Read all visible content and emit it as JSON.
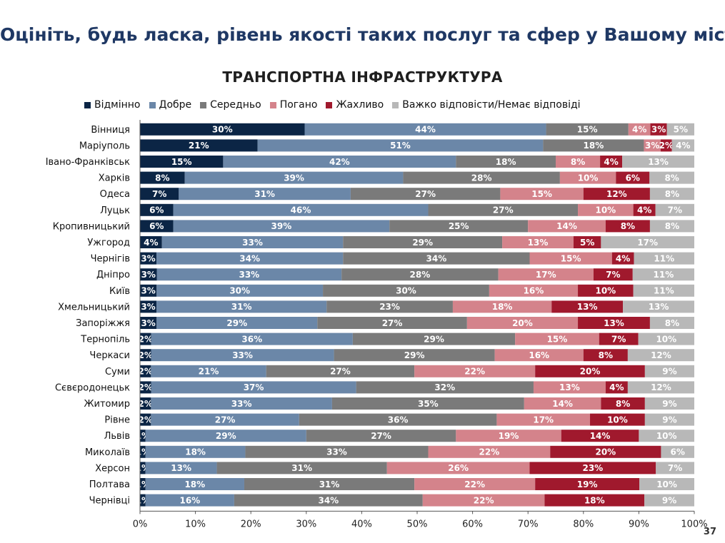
{
  "page": {
    "title": "Оцініть, будь ласка, рівень якості таких послуг та сфер у Вашому місті",
    "page_number": "37"
  },
  "chart_data": {
    "type": "bar",
    "orientation": "horizontal",
    "stacked": "percent",
    "title": "ТРАНСПОРТНА ІНФРАСТРУКТУРА",
    "legend_position": "top",
    "xlim": [
      0,
      100
    ],
    "x_ticks": [
      "0%",
      "10%",
      "20%",
      "30%",
      "40%",
      "50%",
      "60%",
      "70%",
      "80%",
      "90%",
      "100%"
    ],
    "categories": [
      "Вінниця",
      "Маріуполь",
      "Івано-Франківськ",
      "Харків",
      "Одеса",
      "Луцьк",
      "Кропивницький",
      "Ужгород",
      "Чернігів",
      "Дніпро",
      "Київ",
      "Хмельницький",
      "Запоріжжя",
      "Тернопіль",
      "Черкаси",
      "Суми",
      "Сєвєродонецьк",
      "Житомир",
      "Рівне",
      "Львів",
      "Миколаїв",
      "Херсон",
      "Полтава",
      "Чернівці"
    ],
    "series": [
      {
        "name": "Відмінно",
        "color": "#0b2545",
        "label_color": "#ffffff",
        "values": [
          30,
          21,
          15,
          8,
          7,
          6,
          6,
          4,
          3,
          3,
          3,
          3,
          3,
          2,
          2,
          2,
          2,
          2,
          2,
          1,
          1,
          1,
          1,
          1
        ]
      },
      {
        "name": "Добре",
        "color": "#6b87a8",
        "label_color": "#ffffff",
        "values": [
          44,
          51,
          42,
          39,
          31,
          46,
          39,
          33,
          34,
          33,
          30,
          31,
          29,
          36,
          33,
          21,
          37,
          33,
          27,
          29,
          18,
          13,
          18,
          16
        ]
      },
      {
        "name": "Середньо",
        "color": "#7a7a7a",
        "label_color": "#ffffff",
        "values": [
          15,
          18,
          18,
          28,
          27,
          27,
          25,
          29,
          34,
          28,
          30,
          23,
          27,
          29,
          29,
          27,
          32,
          35,
          36,
          27,
          33,
          31,
          31,
          34
        ]
      },
      {
        "name": "Погано",
        "color": "#d4838b",
        "label_color": "#ffffff",
        "values": [
          4,
          3,
          8,
          10,
          15,
          10,
          14,
          13,
          15,
          17,
          16,
          18,
          20,
          15,
          16,
          22,
          13,
          14,
          17,
          19,
          22,
          26,
          22,
          22
        ]
      },
      {
        "name": "Жахливо",
        "color": "#a0192d",
        "label_color": "#ffffff",
        "values": [
          3,
          2,
          4,
          6,
          12,
          4,
          8,
          5,
          4,
          7,
          10,
          13,
          13,
          7,
          8,
          20,
          4,
          8,
          10,
          14,
          20,
          23,
          19,
          18
        ]
      },
      {
        "name": "Важко відповісти/Немає відповіді",
        "color": "#b8b8b8",
        "label_color": "#ffffff",
        "values": [
          5,
          4,
          13,
          8,
          8,
          7,
          8,
          17,
          11,
          11,
          11,
          13,
          8,
          10,
          12,
          9,
          12,
          9,
          9,
          10,
          6,
          7,
          10,
          9
        ]
      }
    ]
  }
}
